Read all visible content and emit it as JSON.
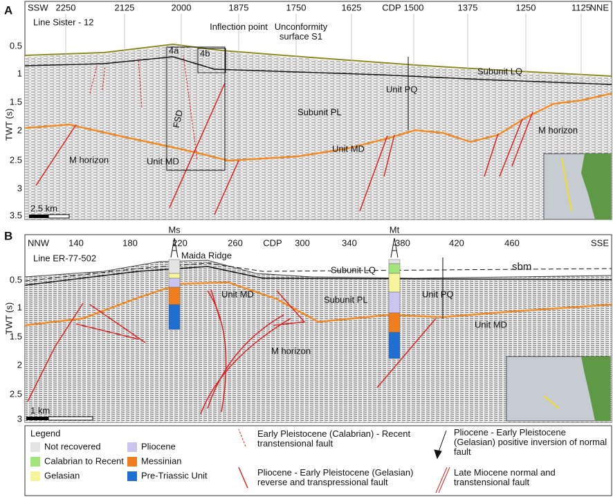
{
  "panel_a": {
    "label": "A",
    "left_direction": "SSW",
    "right_direction": "NNE",
    "cdp_label": "CDP",
    "cdp_ticks": [
      "2250",
      "2125",
      "2000",
      "1875",
      "1750",
      "1625",
      "1500",
      "1375",
      "1250",
      "1125"
    ],
    "yticks": [
      "0.5",
      "1",
      "1.5",
      "2",
      "2.5",
      "3",
      "3.5"
    ],
    "y_label": "TWT (s)",
    "line_name": "Line Sister - 12",
    "scale": "2.5 km",
    "annotations": [
      "4a",
      "4b",
      "Inflection point",
      "Unconformity surface S1",
      "Subunit LQ",
      "Unit PQ",
      "Subunit PL",
      "FSD",
      "M horizon",
      "Unit MD",
      "Unit MD",
      "M horizon"
    ]
  },
  "panel_b": {
    "label": "B",
    "left_direction": "NNW",
    "right_direction": "SSE",
    "cdp_label": "CDP",
    "cdp_ticks": [
      "140",
      "180",
      "220",
      "260",
      "300",
      "340",
      "380",
      "420",
      "460"
    ],
    "yticks": [
      "0.5",
      "1",
      "1.5",
      "2",
      "2.5",
      "3"
    ],
    "y_label": "TWT (s)",
    "line_name": "Line ER-77-502",
    "scale": "1 km",
    "wells": [
      "Ms",
      "Mt"
    ],
    "annotations": [
      "Maida Ridge",
      "Subunit LQ",
      "sbm",
      "Unit MD",
      "Subunit PL",
      "Unit PQ",
      "Unit MD",
      "M horizon"
    ]
  },
  "legend": {
    "title": "Legend",
    "units": [
      {
        "name": "Not recovered",
        "color": "#e4e4e4"
      },
      {
        "name": "Calabrian to Recent",
        "color": "#a3e57a"
      },
      {
        "name": "Gelasian",
        "color": "#f6f59a"
      },
      {
        "name": "Pliocene",
        "color": "#c9c5ef"
      },
      {
        "name": "Messinian",
        "color": "#f07e1e"
      },
      {
        "name": "Pre-Triassic Unit",
        "color": "#1e6fd0"
      }
    ],
    "faults": [
      "Early Pleistocene (Calabrian) - Recent transtensional fault",
      "Pliocene - Early Pleistocene (Gelasian) reverse and transpressional fault",
      "Pliocene - Early Pleistocene (Gelasian) positive inversion of normal fault",
      "Late Miocene normal and transtensional fault"
    ]
  }
}
